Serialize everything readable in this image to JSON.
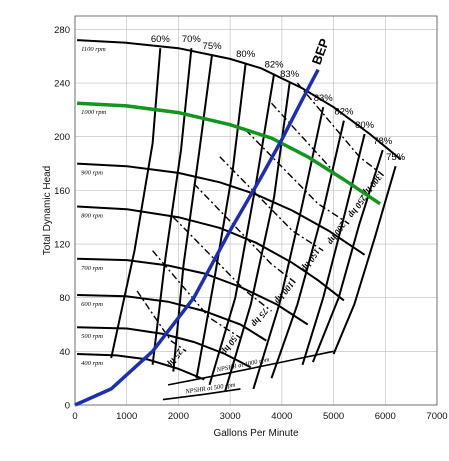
{
  "chart_data": {
    "type": "line",
    "title": "",
    "xlabel": "Gallons Per Minute",
    "ylabel": "Total Dynamic Head",
    "xlim": [
      0,
      7000
    ],
    "ylim": [
      0,
      290
    ],
    "grid": true,
    "x_ticks": [
      "0",
      "1000",
      "2000",
      "3000",
      "4000",
      "5000",
      "6000",
      "7000"
    ],
    "y_ticks": [
      "0",
      "40",
      "80",
      "120",
      "160",
      "200",
      "240",
      "280"
    ],
    "x_tick_values": [
      0,
      1000,
      2000,
      3000,
      4000,
      5000,
      6000,
      7000
    ],
    "y_tick_values": [
      0,
      40,
      80,
      120,
      160,
      200,
      240,
      280
    ],
    "colors": {
      "head_curves": "#000000",
      "highlight": "#14961e",
      "bep": "#1c2fb4",
      "grid": "#bbbbbb"
    },
    "speed_curves": [
      {
        "name": "1100 rpm",
        "highlight": false,
        "x": [
          40,
          1000,
          2000,
          3000,
          3600,
          4400,
          5000,
          5700,
          6300
        ],
        "y": [
          272,
          270,
          266,
          258,
          251,
          236,
          222,
          202,
          183
        ]
      },
      {
        "name": "1000 rpm",
        "highlight": true,
        "x": [
          40,
          1000,
          2000,
          3000,
          3800,
          4500,
          5200,
          5900
        ],
        "y": [
          225,
          223,
          218,
          209,
          199,
          185,
          168,
          150
        ]
      },
      {
        "name": "900 rpm",
        "highlight": false,
        "x": [
          40,
          1000,
          2000,
          2800,
          3500,
          4200,
          4900,
          5600
        ],
        "y": [
          180,
          178,
          173,
          166,
          157,
          145,
          130,
          112
        ]
      },
      {
        "name": "800 rpm",
        "highlight": false,
        "x": [
          40,
          1000,
          2000,
          2800,
          3500,
          4200,
          4700,
          5200
        ],
        "y": [
          148,
          146,
          140,
          132,
          121,
          106,
          93,
          78
        ]
      },
      {
        "name": "700 rpm",
        "highlight": false,
        "x": [
          40,
          1000,
          1800,
          2500,
          3200,
          3900,
          4500
        ],
        "y": [
          109,
          108,
          104,
          98,
          88,
          75,
          60
        ]
      },
      {
        "name": "600 rpm",
        "highlight": false,
        "x": [
          40,
          1000,
          1800,
          2500,
          3200,
          3700
        ],
        "y": [
          82,
          81,
          77,
          70,
          60,
          48
        ]
      },
      {
        "name": "500 rpm",
        "highlight": false,
        "x": [
          40,
          1000,
          1700,
          2300,
          2900,
          3400
        ],
        "y": [
          58,
          57,
          53,
          47,
          38,
          28
        ]
      },
      {
        "name": "400 rpm",
        "highlight": false,
        "x": [
          40,
          800,
          1400,
          2000,
          2500
        ],
        "y": [
          38,
          37,
          34,
          27,
          19
        ]
      }
    ],
    "efficiency_curves": [
      {
        "name": "60%",
        "x": [
          1650,
          1500,
          1150,
          700
        ],
        "y": [
          266,
          195,
          115,
          35
        ]
      },
      {
        "name": "70%",
        "x": [
          2250,
          2050,
          1750,
          1500
        ],
        "y": [
          266,
          190,
          110,
          30
        ]
      },
      {
        "name": "75%",
        "x": [
          2650,
          2400,
          2100,
          1900
        ],
        "y": [
          261,
          188,
          105,
          25
        ]
      },
      {
        "name": "80%",
        "x": [
          3300,
          3050,
          2700,
          2350
        ],
        "y": [
          255,
          175,
          95,
          20
        ]
      },
      {
        "name": "82%",
        "x": [
          3850,
          3500,
          3100,
          2600
        ],
        "y": [
          247,
          165,
          80,
          15
        ]
      },
      {
        "name": "83%",
        "x": [
          4150,
          3850,
          3400,
          2900
        ],
        "y": [
          240,
          155,
          75,
          10
        ]
      },
      {
        "name": "83%",
        "x": [
          4800,
          4400,
          3950,
          3450
        ],
        "y": [
          222,
          150,
          75,
          12
        ]
      },
      {
        "name": "82%",
        "x": [
          5200,
          4800,
          4300,
          3800
        ],
        "y": [
          212,
          145,
          75,
          20
        ]
      },
      {
        "name": "80%",
        "x": [
          5600,
          5200,
          4800,
          4400
        ],
        "y": [
          202,
          140,
          80,
          30
        ]
      },
      {
        "name": "78%",
        "x": [
          5950,
          5500,
          5100,
          4600
        ],
        "y": [
          190,
          135,
          80,
          32
        ]
      },
      {
        "name": "75%",
        "x": [
          6200,
          5800,
          5400,
          5000
        ],
        "y": [
          178,
          125,
          75,
          38
        ]
      }
    ],
    "horsepower_lines": [
      {
        "name": "25 hp",
        "x": [
          1200,
          1850,
          2150
        ],
        "y": [
          85,
          48,
          40
        ]
      },
      {
        "name": "50 hp",
        "x": [
          1500,
          2600,
          3200
        ],
        "y": [
          115,
          65,
          50
        ]
      },
      {
        "name": "75 hp",
        "x": [
          1900,
          3300,
          3800
        ],
        "y": [
          140,
          85,
          70
        ]
      },
      {
        "name": "100 hp",
        "x": [
          2300,
          3800,
          4300
        ],
        "y": [
          165,
          105,
          90
        ]
      },
      {
        "name": "150 hp",
        "x": [
          2800,
          4200,
          4800
        ],
        "y": [
          185,
          130,
          115
        ]
      },
      {
        "name": "200 hp",
        "x": [
          3300,
          4700,
          5300
        ],
        "y": [
          205,
          150,
          135
        ]
      },
      {
        "name": "250 hp",
        "x": [
          3800,
          5100,
          5700
        ],
        "y": [
          225,
          170,
          155
        ]
      },
      {
        "name": "300 hp",
        "x": [
          4300,
          5500,
          6000
        ],
        "y": [
          240,
          185,
          170
        ]
      }
    ],
    "bep_curve": {
      "name": "BEP",
      "x": [
        0,
        700,
        1500,
        2300,
        3000,
        3600,
        4000,
        4400,
        4700
      ],
      "y": [
        0,
        12,
        40,
        80,
        130,
        170,
        198,
        228,
        250
      ]
    },
    "npshr_curves": [
      {
        "name": "NPSHR at 1000 rpm",
        "x": [
          1800,
          3000,
          4000,
          5000
        ],
        "y": [
          15,
          24,
          32,
          40
        ]
      },
      {
        "name": "NPSHR at 500 rpm",
        "x": [
          1700,
          2500,
          3200
        ],
        "y": [
          4,
          8,
          12
        ]
      }
    ]
  }
}
